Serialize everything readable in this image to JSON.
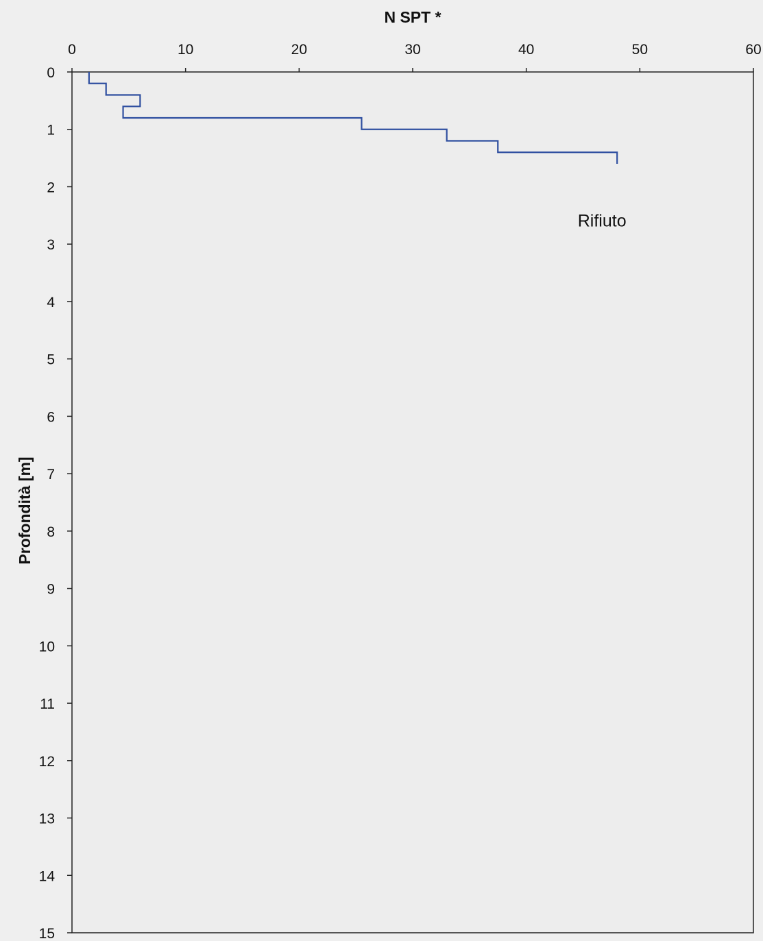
{
  "chart_data": {
    "type": "line",
    "title": "",
    "xlabel": "N SPT *",
    "ylabel": "Profondità [m]",
    "x_axis_position": "top",
    "y_axis_inverted": true,
    "xlim": [
      0,
      60
    ],
    "ylim": [
      0,
      15
    ],
    "xticks": [
      "0",
      "10",
      "20",
      "30",
      "40",
      "50",
      "60"
    ],
    "yticks": [
      "0",
      "1",
      "2",
      "3",
      "4",
      "5",
      "6",
      "7",
      "8",
      "9",
      "10",
      "11",
      "12",
      "13",
      "14",
      "15"
    ],
    "grid": false,
    "legend": "none",
    "series": [
      {
        "color": "#2f4fa0",
        "points": [
          {
            "x": 1.5,
            "y": 0.0
          },
          {
            "x": 1.5,
            "y": 0.2
          },
          {
            "x": 3.0,
            "y": 0.2
          },
          {
            "x": 3.0,
            "y": 0.4
          },
          {
            "x": 6.0,
            "y": 0.4
          },
          {
            "x": 6.0,
            "y": 0.6
          },
          {
            "x": 4.5,
            "y": 0.6
          },
          {
            "x": 4.5,
            "y": 0.8
          },
          {
            "x": 25.5,
            "y": 0.8
          },
          {
            "x": 25.5,
            "y": 1.0
          },
          {
            "x": 33.0,
            "y": 1.0
          },
          {
            "x": 33.0,
            "y": 1.2
          },
          {
            "x": 37.5,
            "y": 1.2
          },
          {
            "x": 37.5,
            "y": 1.4
          },
          {
            "x": 48.0,
            "y": 1.4
          },
          {
            "x": 48.0,
            "y": 1.6
          }
        ]
      }
    ],
    "annotations": [
      {
        "text": "Rifiuto",
        "x": 48.0,
        "y": 2.6
      }
    ]
  }
}
